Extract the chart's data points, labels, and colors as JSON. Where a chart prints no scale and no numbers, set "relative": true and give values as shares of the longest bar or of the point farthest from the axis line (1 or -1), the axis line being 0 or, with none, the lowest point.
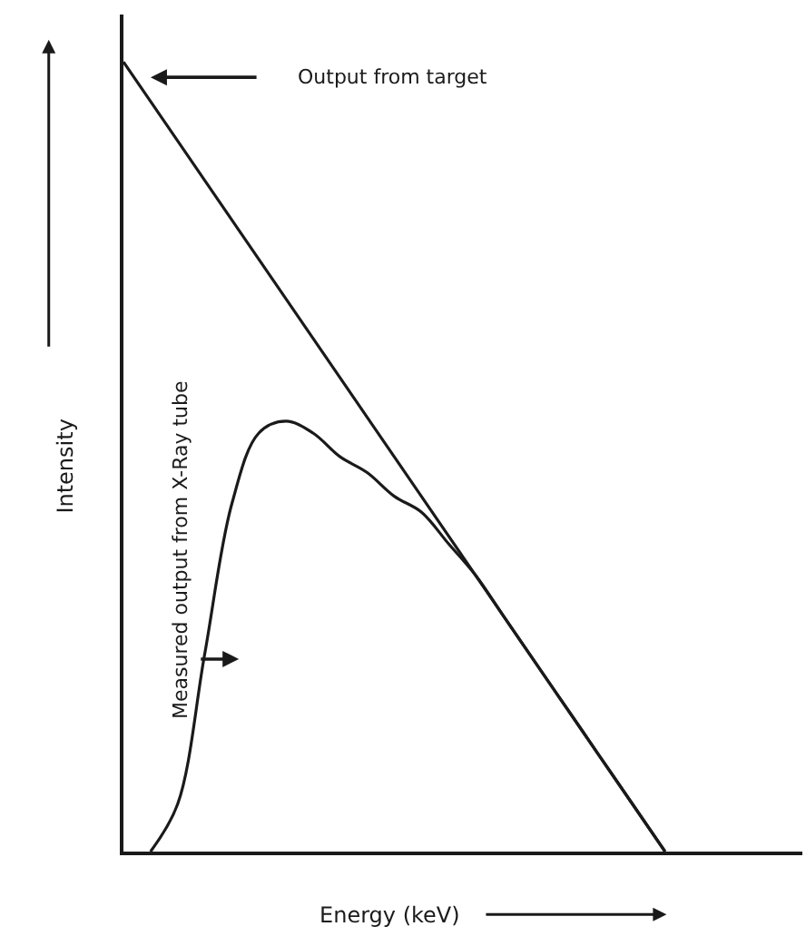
{
  "chart_data": {
    "type": "line",
    "relative": true,
    "xlabel": "Energy (keV)",
    "ylabel": "Intensity",
    "categories": [
      null,
      null,
      null,
      null,
      null,
      null,
      null,
      null,
      null,
      null,
      null,
      null,
      null,
      null,
      null,
      null,
      null,
      null,
      null,
      null,
      null,
      null,
      null,
      null,
      null,
      null
    ],
    "series": [
      {
        "color": "#1a1a1a",
        "values": [
          1.0,
          0.95,
          0.9,
          0.85,
          0.8,
          0.75,
          0.7,
          0.65,
          0.6,
          0.55,
          0.5,
          0.45,
          0.4,
          0.35,
          0.3,
          0.25,
          0.2,
          0.15,
          0.1,
          0.05,
          0.0,
          null,
          null,
          null,
          null,
          null
        ]
      },
      {
        "color": "#1a1a1a",
        "values": [
          null,
          0.0,
          0.06,
          0.25,
          0.44,
          0.53,
          0.545,
          0.53,
          0.5,
          0.48,
          0.45,
          0.43,
          0.39,
          0.35,
          0.3,
          0.25,
          0.2,
          0.15,
          0.1,
          0.05,
          0.0,
          null,
          null,
          null,
          null,
          null
        ]
      }
    ],
    "annotations": [
      "Output from target",
      "Measured output from X-Ray tube"
    ],
    "tick_labels": false,
    "marker": "none",
    "line_style": "solid"
  }
}
